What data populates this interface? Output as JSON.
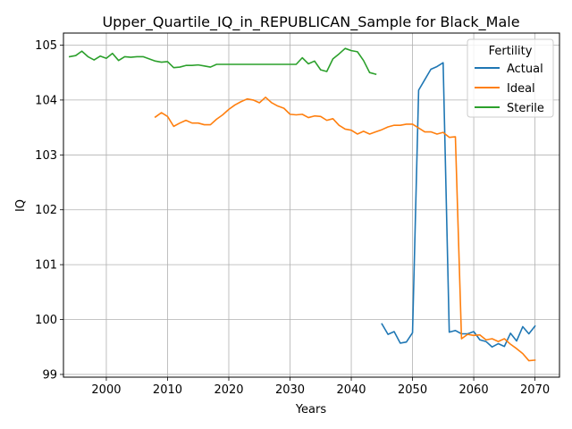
{
  "chart_data": {
    "type": "line",
    "title": "Upper_Quartile_IQ_in_REPUBLICAN_Sample for Black_Male",
    "xlabel": "Years",
    "ylabel": "IQ",
    "xlim": [
      1993,
      2074
    ],
    "ylim": [
      98.95,
      105.22
    ],
    "xticks": [
      2000,
      2010,
      2020,
      2030,
      2040,
      2050,
      2060,
      2070
    ],
    "yticks": [
      99,
      100,
      101,
      102,
      103,
      104,
      105
    ],
    "grid": true,
    "legend": {
      "title": "Fertility",
      "placement": "top-right"
    },
    "series": [
      {
        "name": "Actual",
        "color": "#1f77b4",
        "x": [
          2045,
          2046,
          2047,
          2048,
          2049,
          2050,
          2051,
          2052,
          2053,
          2054,
          2055,
          2056,
          2057,
          2058,
          2059,
          2060,
          2061,
          2062,
          2063,
          2064,
          2065,
          2066,
          2067,
          2068,
          2069,
          2070
        ],
        "y": [
          99.92,
          99.73,
          99.78,
          99.57,
          99.59,
          99.76,
          104.18,
          104.37,
          104.56,
          104.61,
          104.68,
          99.77,
          99.8,
          99.74,
          99.74,
          99.78,
          99.63,
          99.6,
          99.5,
          99.56,
          99.51,
          99.75,
          99.61,
          99.87,
          99.74,
          99.88
        ]
      },
      {
        "name": "Ideal",
        "color": "#ff7f0e",
        "x": [
          2008,
          2009,
          2010,
          2011,
          2012,
          2013,
          2014,
          2015,
          2016,
          2017,
          2018,
          2019,
          2020,
          2021,
          2022,
          2023,
          2024,
          2025,
          2026,
          2027,
          2028,
          2029,
          2030,
          2031,
          2032,
          2033,
          2034,
          2035,
          2036,
          2037,
          2038,
          2039,
          2040,
          2041,
          2042,
          2043,
          2044,
          2045,
          2046,
          2047,
          2048,
          2049,
          2050,
          2051,
          2052,
          2053,
          2054,
          2055,
          2056,
          2057,
          2058,
          2059,
          2060,
          2061,
          2062,
          2063,
          2064,
          2065,
          2066,
          2067,
          2068,
          2069,
          2070
        ],
        "y": [
          103.69,
          103.77,
          103.7,
          103.52,
          103.58,
          103.63,
          103.58,
          103.58,
          103.55,
          103.55,
          103.65,
          103.73,
          103.83,
          103.91,
          103.97,
          104.02,
          104.0,
          103.95,
          104.05,
          103.95,
          103.89,
          103.85,
          103.74,
          103.73,
          103.74,
          103.68,
          103.71,
          103.7,
          103.63,
          103.66,
          103.54,
          103.47,
          103.45,
          103.38,
          103.43,
          103.38,
          103.42,
          103.46,
          103.51,
          103.54,
          103.54,
          103.56,
          103.56,
          103.49,
          103.42,
          103.42,
          103.38,
          103.41,
          103.32,
          103.33,
          99.65,
          99.73,
          99.71,
          99.72,
          99.63,
          99.65,
          99.6,
          99.65,
          99.55,
          99.47,
          99.38,
          99.25,
          99.26
        ]
      },
      {
        "name": "Sterile",
        "color": "#2ca02c",
        "x": [
          1994,
          1995,
          1996,
          1997,
          1998,
          1999,
          2000,
          2001,
          2002,
          2003,
          2004,
          2005,
          2006,
          2007,
          2008,
          2009,
          2010,
          2011,
          2012,
          2013,
          2014,
          2015,
          2016,
          2017,
          2018,
          2019,
          2020,
          2021,
          2022,
          2023,
          2024,
          2025,
          2026,
          2027,
          2028,
          2029,
          2030,
          2031,
          2032,
          2033,
          2034,
          2035,
          2036,
          2037,
          2038,
          2039,
          2040,
          2041,
          2042,
          2043,
          2044
        ],
        "y": [
          104.79,
          104.81,
          104.89,
          104.79,
          104.73,
          104.8,
          104.76,
          104.85,
          104.72,
          104.79,
          104.78,
          104.79,
          104.79,
          104.75,
          104.71,
          104.69,
          104.7,
          104.59,
          104.6,
          104.63,
          104.63,
          104.64,
          104.62,
          104.6,
          104.65,
          104.65,
          104.65,
          104.65,
          104.65,
          104.65,
          104.65,
          104.65,
          104.65,
          104.65,
          104.65,
          104.65,
          104.65,
          104.65,
          104.77,
          104.66,
          104.71,
          104.55,
          104.52,
          104.75,
          104.84,
          104.94,
          104.9,
          104.88,
          104.72,
          104.5,
          104.47
        ]
      }
    ]
  }
}
